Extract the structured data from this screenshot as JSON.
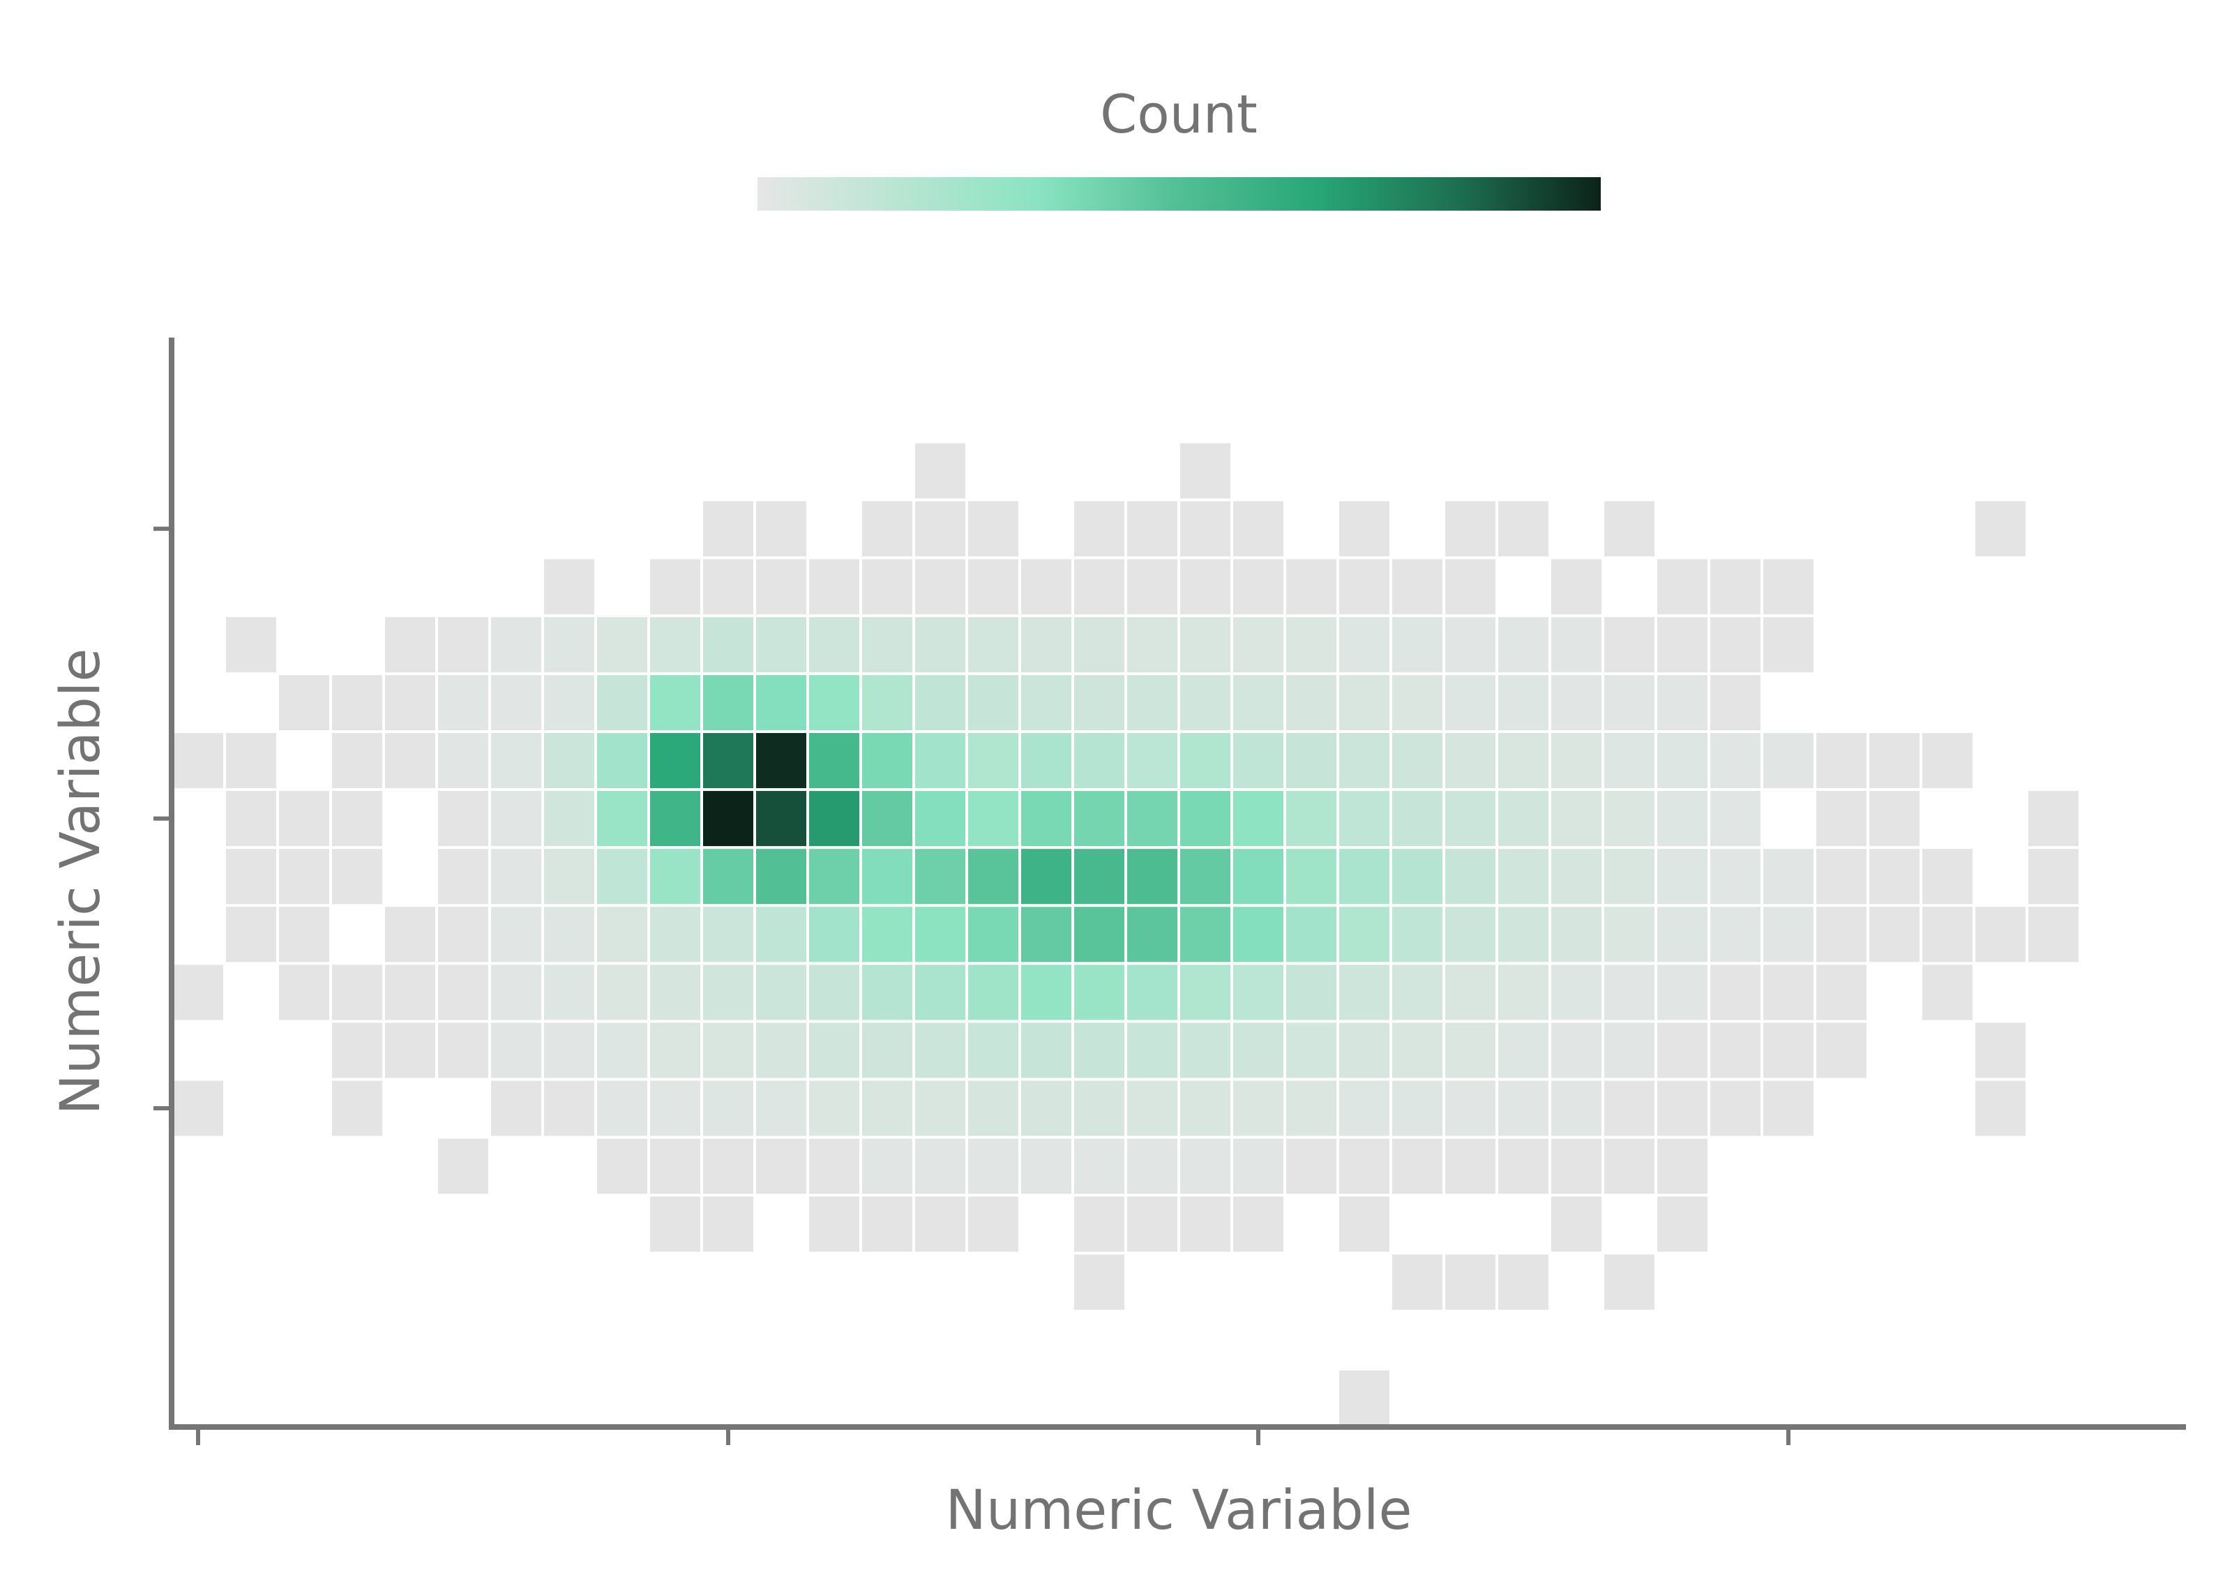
{
  "chart_data": {
    "type": "heatmap",
    "title": "",
    "xlabel": "Numeric Variable",
    "ylabel": "Numeric Variable",
    "legend": {
      "title": "Count",
      "placement": "top",
      "colors": [
        "#e6e6e6",
        "#b9e5d3",
        "#8ae3c2",
        "#52bf95",
        "#27a677",
        "#1d6e50",
        "#0c231a"
      ]
    },
    "colors": {
      "axis": "#757575",
      "text": "#737373",
      "empty_bin": "#e4e4e4",
      "cell_border": "#ffffff"
    },
    "grid": false,
    "x_bins": 36,
    "y_bins": 17,
    "xlim": [
      -0.5,
      37.5
    ],
    "ylim": [
      -0.5,
      18.3
    ],
    "x_ticks": [
      0,
      10,
      20,
      30
    ],
    "y_ticks": [
      5,
      10,
      15
    ],
    "tick_labels_shown": false,
    "max_count": 100,
    "rows_top_to_bottom": [
      "..............#....#....................",
      "..........##.###.####.#.##.#......#.",
      "........#.##############.###........",
      "..#..###################################",
      "..#######################################",
      ".##.#####################################",
      ".###.####################################",
      ".###.####################################",
      ".##.#####################################",
      "#.###################################",
      "..##############################.#...",
      "#..#.###########################.#..",
      ".....#.#########################....",
      ".........##.#####.####.#...#.#......",
      "...................#.....###.#......",
      "....................................",
      "......................#............."
    ],
    "cells": [
      [
        14,
        16,
        1
      ],
      [
        19,
        16,
        1
      ],
      [
        10,
        15,
        1
      ],
      [
        11,
        15,
        1
      ],
      [
        13,
        15,
        1
      ],
      [
        14,
        15,
        1
      ],
      [
        15,
        15,
        1
      ],
      [
        17,
        15,
        1
      ],
      [
        18,
        15,
        1
      ],
      [
        19,
        15,
        1
      ],
      [
        20,
        15,
        1
      ],
      [
        22,
        15,
        1
      ],
      [
        24,
        15,
        1
      ],
      [
        25,
        15,
        1
      ],
      [
        27,
        15,
        1
      ],
      [
        34,
        15,
        1
      ],
      [
        7,
        14,
        1
      ],
      [
        9,
        14,
        1
      ],
      [
        10,
        14,
        1
      ],
      [
        11,
        14,
        1
      ],
      [
        12,
        14,
        1
      ],
      [
        13,
        14,
        1
      ],
      [
        14,
        14,
        1
      ],
      [
        15,
        14,
        1
      ],
      [
        16,
        14,
        1
      ],
      [
        17,
        14,
        1
      ],
      [
        18,
        14,
        1
      ],
      [
        19,
        14,
        1
      ],
      [
        20,
        14,
        1
      ],
      [
        21,
        14,
        1
      ],
      [
        22,
        14,
        1
      ],
      [
        23,
        14,
        1
      ],
      [
        24,
        14,
        1
      ],
      [
        26,
        14,
        1
      ],
      [
        28,
        14,
        1
      ],
      [
        29,
        14,
        1
      ],
      [
        30,
        14,
        1
      ],
      [
        1,
        13,
        1
      ],
      [
        4,
        13,
        1
      ],
      [
        5,
        13,
        1
      ],
      [
        6,
        13,
        2
      ],
      [
        7,
        13,
        3
      ],
      [
        8,
        13,
        5
      ],
      [
        9,
        13,
        7
      ],
      [
        10,
        13,
        12
      ],
      [
        11,
        13,
        10
      ],
      [
        12,
        13,
        9
      ],
      [
        13,
        13,
        8
      ],
      [
        14,
        13,
        8
      ],
      [
        15,
        13,
        7
      ],
      [
        16,
        13,
        6
      ],
      [
        17,
        13,
        6
      ],
      [
        18,
        13,
        5
      ],
      [
        19,
        13,
        5
      ],
      [
        20,
        13,
        4
      ],
      [
        21,
        13,
        4
      ],
      [
        22,
        13,
        3
      ],
      [
        23,
        13,
        3
      ],
      [
        24,
        13,
        2
      ],
      [
        25,
        13,
        2
      ],
      [
        26,
        13,
        2
      ],
      [
        27,
        13,
        1
      ],
      [
        28,
        13,
        1
      ],
      [
        29,
        13,
        1
      ],
      [
        30,
        13,
        1
      ],
      [
        2,
        12,
        1
      ],
      [
        3,
        12,
        1
      ],
      [
        4,
        12,
        1
      ],
      [
        5,
        12,
        2
      ],
      [
        6,
        12,
        2
      ],
      [
        7,
        12,
        3
      ],
      [
        8,
        12,
        12
      ],
      [
        9,
        12,
        30
      ],
      [
        10,
        12,
        38
      ],
      [
        11,
        12,
        35
      ],
      [
        12,
        12,
        30
      ],
      [
        13,
        12,
        20
      ],
      [
        14,
        12,
        14
      ],
      [
        15,
        12,
        12
      ],
      [
        16,
        12,
        10
      ],
      [
        17,
        12,
        9
      ],
      [
        18,
        12,
        9
      ],
      [
        19,
        12,
        8
      ],
      [
        20,
        12,
        7
      ],
      [
        21,
        12,
        6
      ],
      [
        22,
        12,
        5
      ],
      [
        23,
        12,
        4
      ],
      [
        24,
        12,
        3
      ],
      [
        25,
        12,
        3
      ],
      [
        26,
        12,
        2
      ],
      [
        27,
        12,
        2
      ],
      [
        28,
        12,
        2
      ],
      [
        29,
        12,
        1
      ],
      [
        0,
        11,
        1
      ],
      [
        1,
        11,
        1
      ],
      [
        3,
        11,
        1
      ],
      [
        4,
        11,
        1
      ],
      [
        5,
        11,
        2
      ],
      [
        6,
        11,
        3
      ],
      [
        7,
        11,
        10
      ],
      [
        8,
        11,
        25
      ],
      [
        9,
        11,
        65
      ],
      [
        10,
        11,
        80
      ],
      [
        11,
        11,
        98
      ],
      [
        12,
        11,
        55
      ],
      [
        13,
        11,
        38
      ],
      [
        14,
        11,
        25
      ],
      [
        15,
        11,
        20
      ],
      [
        16,
        11,
        22
      ],
      [
        17,
        11,
        18
      ],
      [
        18,
        11,
        16
      ],
      [
        19,
        11,
        20
      ],
      [
        20,
        11,
        15
      ],
      [
        21,
        11,
        12
      ],
      [
        22,
        11,
        10
      ],
      [
        23,
        11,
        9
      ],
      [
        24,
        11,
        6
      ],
      [
        25,
        11,
        5
      ],
      [
        26,
        11,
        4
      ],
      [
        27,
        11,
        3
      ],
      [
        28,
        11,
        3
      ],
      [
        29,
        11,
        2
      ],
      [
        30,
        11,
        2
      ],
      [
        31,
        11,
        1
      ],
      [
        32,
        11,
        1
      ],
      [
        33,
        11,
        1
      ],
      [
        1,
        10,
        1
      ],
      [
        2,
        10,
        1
      ],
      [
        3,
        10,
        1
      ],
      [
        5,
        10,
        1
      ],
      [
        6,
        10,
        2
      ],
      [
        7,
        10,
        8
      ],
      [
        8,
        10,
        28
      ],
      [
        9,
        10,
        57
      ],
      [
        10,
        10,
        100
      ],
      [
        11,
        10,
        90
      ],
      [
        12,
        10,
        70
      ],
      [
        13,
        10,
        45
      ],
      [
        14,
        10,
        35
      ],
      [
        15,
        10,
        30
      ],
      [
        16,
        10,
        38
      ],
      [
        17,
        10,
        40
      ],
      [
        18,
        10,
        40
      ],
      [
        19,
        10,
        38
      ],
      [
        20,
        10,
        32
      ],
      [
        21,
        10,
        20
      ],
      [
        22,
        10,
        15
      ],
      [
        23,
        10,
        12
      ],
      [
        24,
        10,
        10
      ],
      [
        25,
        10,
        8
      ],
      [
        26,
        10,
        5
      ],
      [
        27,
        10,
        4
      ],
      [
        28,
        10,
        3
      ],
      [
        29,
        10,
        2
      ],
      [
        31,
        10,
        1
      ],
      [
        32,
        10,
        1
      ],
      [
        35,
        10,
        1
      ],
      [
        1,
        9,
        1
      ],
      [
        2,
        9,
        1
      ],
      [
        3,
        9,
        1
      ],
      [
        5,
        9,
        1
      ],
      [
        6,
        9,
        2
      ],
      [
        7,
        9,
        5
      ],
      [
        8,
        9,
        15
      ],
      [
        9,
        9,
        28
      ],
      [
        10,
        9,
        44
      ],
      [
        11,
        9,
        50
      ],
      [
        12,
        9,
        42
      ],
      [
        13,
        9,
        36
      ],
      [
        14,
        9,
        42
      ],
      [
        15,
        9,
        48
      ],
      [
        16,
        9,
        58
      ],
      [
        17,
        9,
        54
      ],
      [
        18,
        9,
        52
      ],
      [
        19,
        9,
        45
      ],
      [
        20,
        9,
        36
      ],
      [
        21,
        9,
        26
      ],
      [
        22,
        9,
        22
      ],
      [
        23,
        9,
        18
      ],
      [
        24,
        9,
        12
      ],
      [
        25,
        9,
        8
      ],
      [
        26,
        9,
        6
      ],
      [
        27,
        9,
        5
      ],
      [
        28,
        9,
        3
      ],
      [
        29,
        9,
        2
      ],
      [
        30,
        9,
        2
      ],
      [
        31,
        9,
        1
      ],
      [
        32,
        9,
        1
      ],
      [
        33,
        9,
        1
      ],
      [
        35,
        9,
        1
      ],
      [
        1,
        8,
        1
      ],
      [
        2,
        8,
        1
      ],
      [
        4,
        8,
        1
      ],
      [
        5,
        8,
        1
      ],
      [
        6,
        8,
        2
      ],
      [
        7,
        8,
        3
      ],
      [
        8,
        8,
        5
      ],
      [
        9,
        8,
        8
      ],
      [
        10,
        8,
        10
      ],
      [
        11,
        8,
        15
      ],
      [
        12,
        8,
        25
      ],
      [
        13,
        8,
        30
      ],
      [
        14,
        8,
        33
      ],
      [
        15,
        8,
        38
      ],
      [
        16,
        8,
        45
      ],
      [
        17,
        8,
        48
      ],
      [
        18,
        8,
        47
      ],
      [
        19,
        8,
        42
      ],
      [
        20,
        8,
        35
      ],
      [
        21,
        8,
        25
      ],
      [
        22,
        8,
        20
      ],
      [
        23,
        8,
        15
      ],
      [
        24,
        8,
        10
      ],
      [
        25,
        8,
        8
      ],
      [
        26,
        8,
        6
      ],
      [
        27,
        8,
        4
      ],
      [
        28,
        8,
        3
      ],
      [
        29,
        8,
        2
      ],
      [
        30,
        8,
        2
      ],
      [
        31,
        8,
        1
      ],
      [
        32,
        8,
        1
      ],
      [
        33,
        8,
        1
      ],
      [
        34,
        8,
        1
      ],
      [
        35,
        8,
        1
      ],
      [
        0,
        7,
        1
      ],
      [
        2,
        7,
        1
      ],
      [
        3,
        7,
        1
      ],
      [
        4,
        7,
        1
      ],
      [
        5,
        7,
        1
      ],
      [
        6,
        7,
        2
      ],
      [
        7,
        7,
        3
      ],
      [
        8,
        7,
        4
      ],
      [
        9,
        7,
        6
      ],
      [
        10,
        7,
        8
      ],
      [
        11,
        7,
        10
      ],
      [
        12,
        7,
        12
      ],
      [
        13,
        7,
        18
      ],
      [
        14,
        7,
        22
      ],
      [
        15,
        7,
        26
      ],
      [
        16,
        7,
        30
      ],
      [
        17,
        7,
        28
      ],
      [
        18,
        7,
        24
      ],
      [
        19,
        7,
        20
      ],
      [
        20,
        7,
        16
      ],
      [
        21,
        7,
        12
      ],
      [
        22,
        7,
        9
      ],
      [
        23,
        7,
        7
      ],
      [
        24,
        7,
        5
      ],
      [
        25,
        7,
        4
      ],
      [
        26,
        7,
        3
      ],
      [
        27,
        7,
        2
      ],
      [
        28,
        7,
        2
      ],
      [
        29,
        7,
        1
      ],
      [
        30,
        7,
        1
      ],
      [
        31,
        7,
        1
      ],
      [
        33,
        7,
        1
      ],
      [
        3,
        6,
        1
      ],
      [
        4,
        6,
        1
      ],
      [
        5,
        6,
        1
      ],
      [
        6,
        6,
        2
      ],
      [
        7,
        6,
        2
      ],
      [
        8,
        6,
        3
      ],
      [
        9,
        6,
        4
      ],
      [
        10,
        6,
        5
      ],
      [
        11,
        6,
        6
      ],
      [
        12,
        6,
        8
      ],
      [
        13,
        6,
        9
      ],
      [
        14,
        6,
        10
      ],
      [
        15,
        6,
        11
      ],
      [
        16,
        6,
        12
      ],
      [
        17,
        6,
        12
      ],
      [
        18,
        6,
        11
      ],
      [
        19,
        6,
        10
      ],
      [
        20,
        6,
        9
      ],
      [
        21,
        6,
        7
      ],
      [
        22,
        6,
        6
      ],
      [
        23,
        6,
        5
      ],
      [
        24,
        6,
        4
      ],
      [
        25,
        6,
        3
      ],
      [
        26,
        6,
        2
      ],
      [
        27,
        6,
        2
      ],
      [
        28,
        6,
        1
      ],
      [
        29,
        6,
        1
      ],
      [
        30,
        6,
        1
      ],
      [
        31,
        6,
        1
      ],
      [
        34,
        6,
        1
      ],
      [
        0,
        5,
        1
      ],
      [
        3,
        5,
        1
      ],
      [
        6,
        5,
        1
      ],
      [
        7,
        5,
        1
      ],
      [
        8,
        5,
        2
      ],
      [
        9,
        5,
        2
      ],
      [
        10,
        5,
        3
      ],
      [
        11,
        5,
        3
      ],
      [
        12,
        5,
        4
      ],
      [
        13,
        5,
        5
      ],
      [
        14,
        5,
        5
      ],
      [
        15,
        5,
        6
      ],
      [
        16,
        5,
        6
      ],
      [
        17,
        5,
        6
      ],
      [
        18,
        5,
        5
      ],
      [
        19,
        5,
        5
      ],
      [
        20,
        5,
        4
      ],
      [
        21,
        5,
        4
      ],
      [
        22,
        5,
        3
      ],
      [
        23,
        5,
        3
      ],
      [
        24,
        5,
        2
      ],
      [
        25,
        5,
        2
      ],
      [
        26,
        5,
        2
      ],
      [
        27,
        5,
        1
      ],
      [
        28,
        5,
        1
      ],
      [
        29,
        5,
        1
      ],
      [
        30,
        5,
        1
      ],
      [
        34,
        5,
        1
      ],
      [
        5,
        4,
        1
      ],
      [
        8,
        4,
        1
      ],
      [
        9,
        4,
        1
      ],
      [
        10,
        4,
        1
      ],
      [
        11,
        4,
        1
      ],
      [
        12,
        4,
        1
      ],
      [
        13,
        4,
        2
      ],
      [
        14,
        4,
        2
      ],
      [
        15,
        4,
        2
      ],
      [
        16,
        4,
        2
      ],
      [
        17,
        4,
        2
      ],
      [
        18,
        4,
        2
      ],
      [
        19,
        4,
        2
      ],
      [
        20,
        4,
        2
      ],
      [
        21,
        4,
        1
      ],
      [
        22,
        4,
        1
      ],
      [
        23,
        4,
        1
      ],
      [
        24,
        4,
        1
      ],
      [
        25,
        4,
        1
      ],
      [
        26,
        4,
        1
      ],
      [
        27,
        4,
        1
      ],
      [
        28,
        4,
        1
      ],
      [
        9,
        3,
        1
      ],
      [
        10,
        3,
        1
      ],
      [
        12,
        3,
        1
      ],
      [
        13,
        3,
        1
      ],
      [
        14,
        3,
        1
      ],
      [
        15,
        3,
        1
      ],
      [
        17,
        3,
        1
      ],
      [
        18,
        3,
        1
      ],
      [
        19,
        3,
        1
      ],
      [
        20,
        3,
        1
      ],
      [
        22,
        3,
        1
      ],
      [
        26,
        3,
        1
      ],
      [
        28,
        3,
        1
      ],
      [
        17,
        2,
        1
      ],
      [
        23,
        2,
        1
      ],
      [
        24,
        2,
        1
      ],
      [
        25,
        2,
        1
      ],
      [
        27,
        2,
        1
      ],
      [
        22,
        0,
        1
      ]
    ]
  }
}
